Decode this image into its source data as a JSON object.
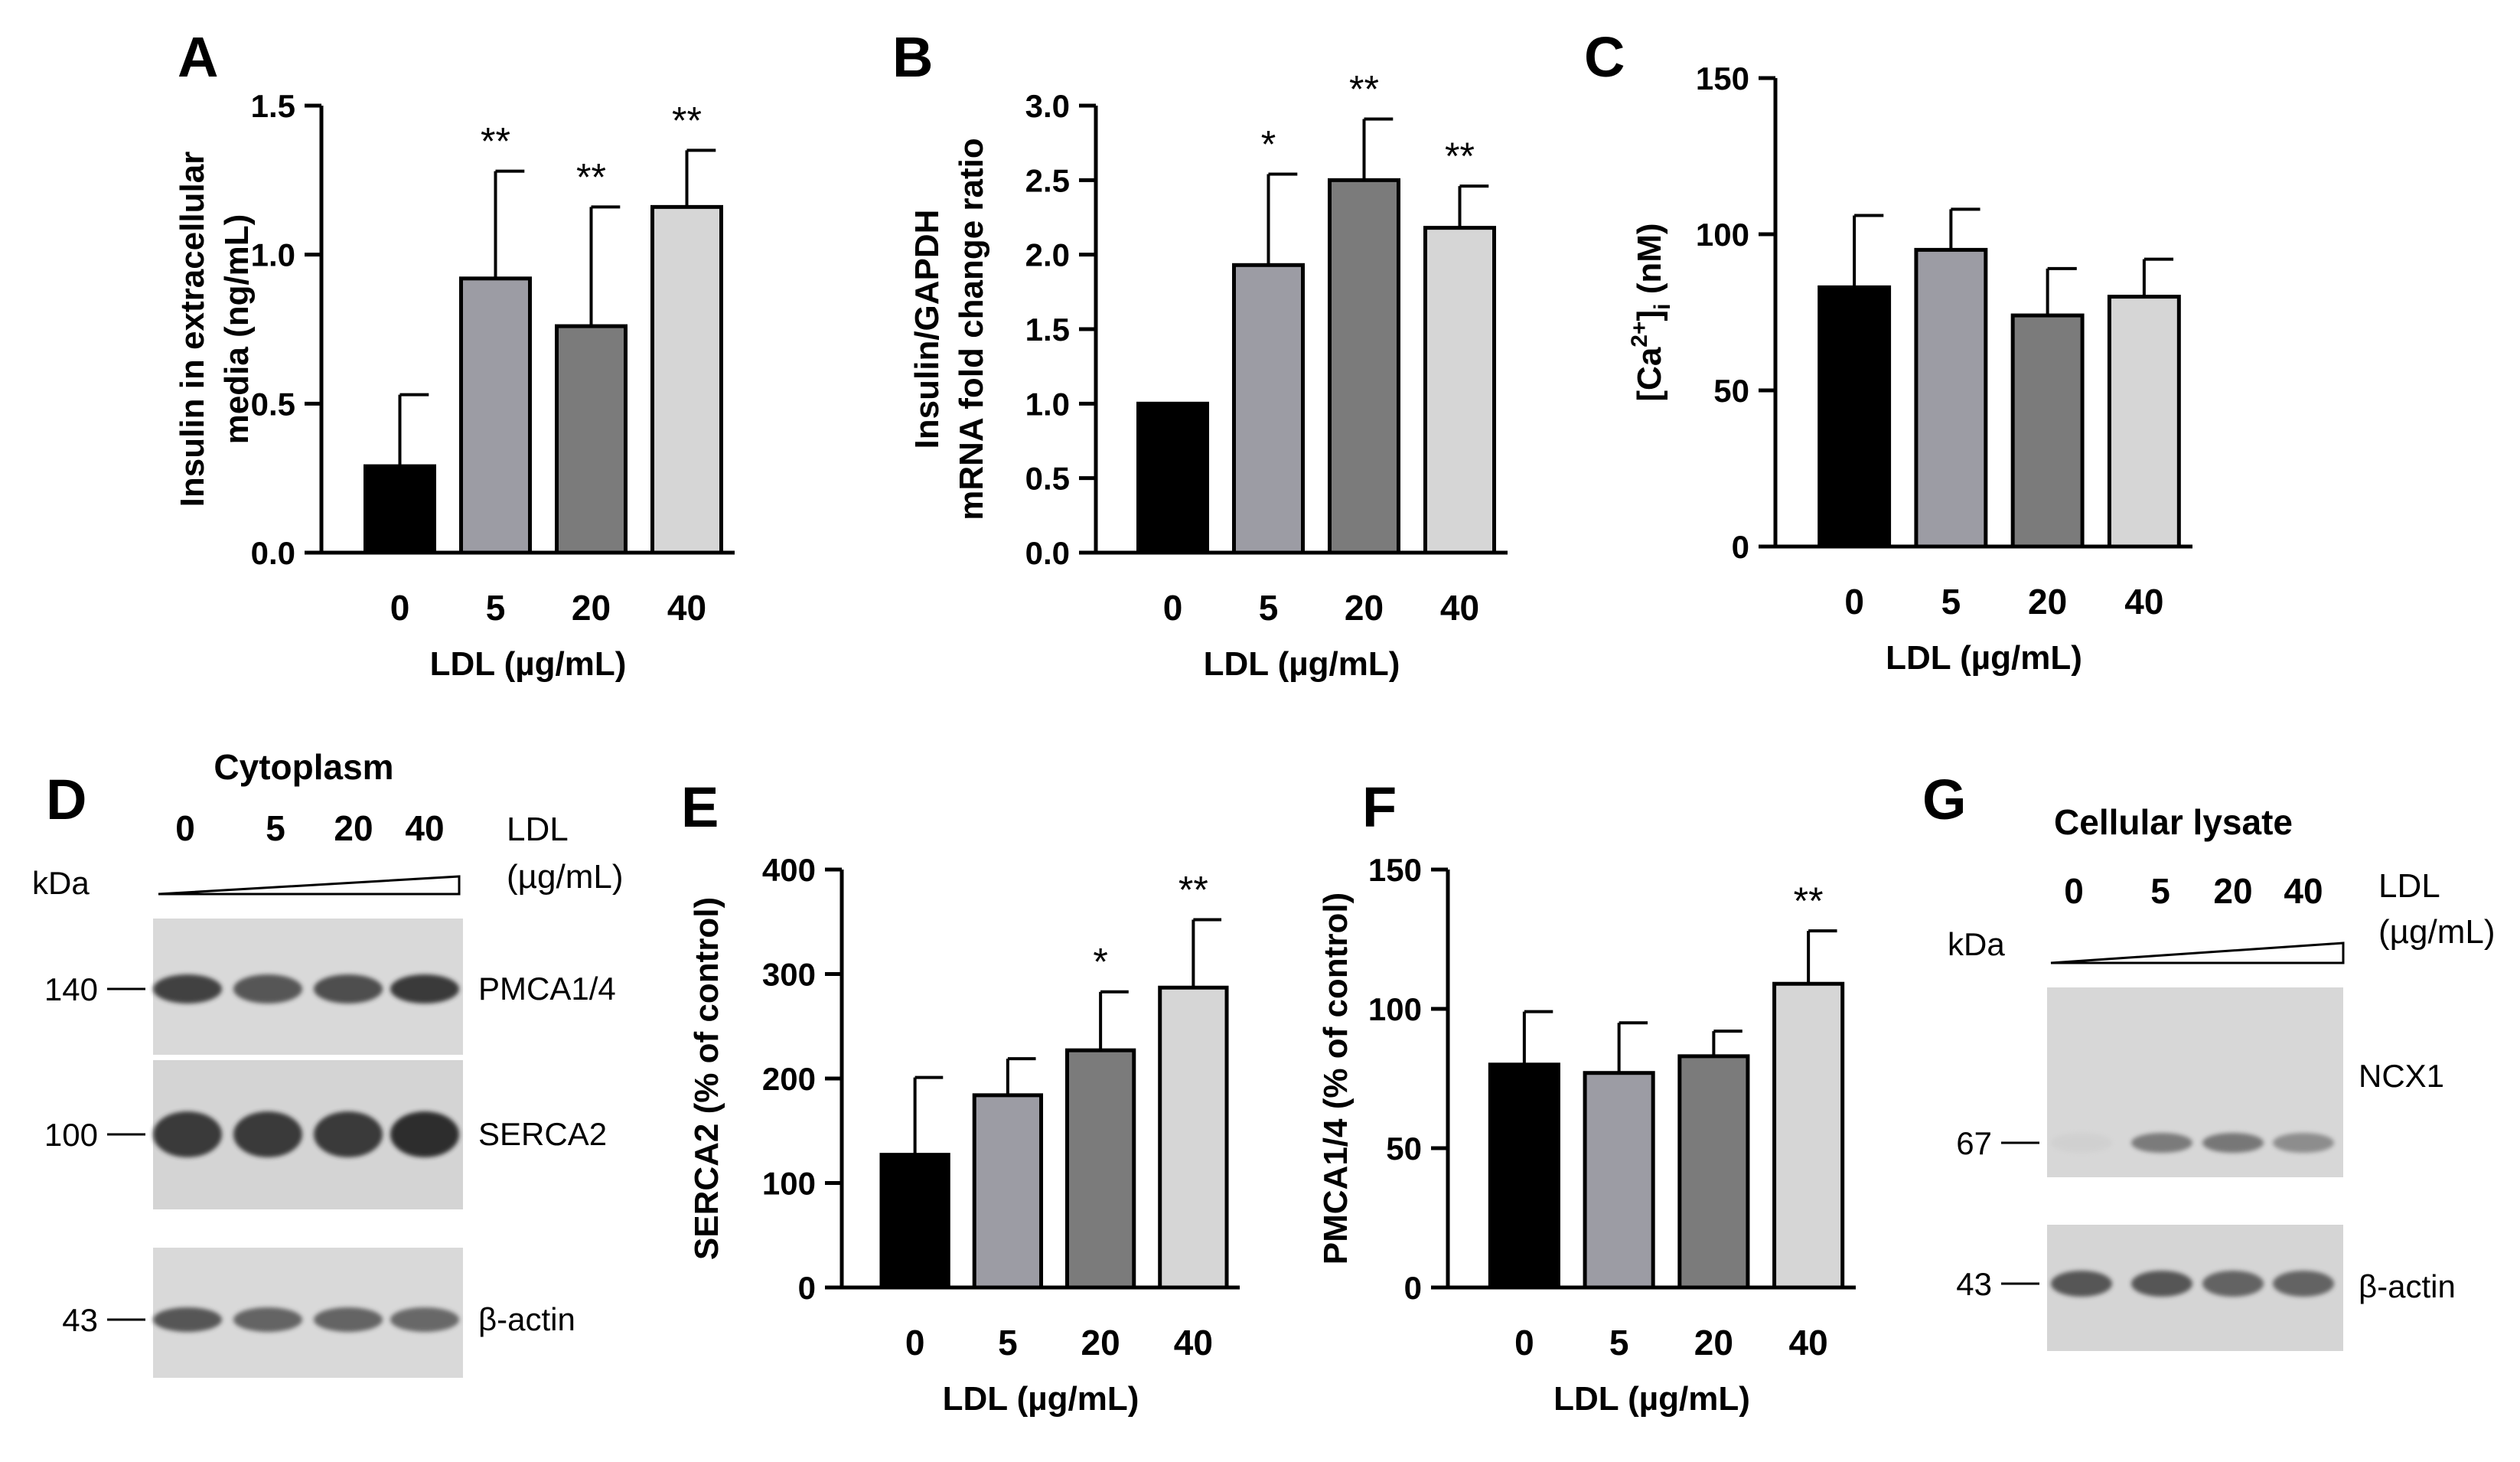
{
  "panel_letters": {
    "a": "A",
    "b": "B",
    "c": "C",
    "d": "D",
    "e": "E",
    "f": "F",
    "g": "G"
  },
  "colors": {
    "bar0": "#000000",
    "bar5": "#9c9ca4",
    "bar20": "#7b7b7b",
    "bar40": "#d6d6d6",
    "axis": "#000000"
  },
  "chart_data": [
    {
      "id": "A",
      "type": "bar",
      "categories": [
        "0",
        "5",
        "20",
        "40"
      ],
      "values": [
        0.29,
        0.92,
        0.76,
        1.16
      ],
      "errors": [
        0.24,
        0.36,
        0.4,
        0.19
      ],
      "significance": [
        "",
        "**",
        "**",
        "**"
      ],
      "ylim": [
        0,
        1.5
      ],
      "yticks": [
        "0.0",
        "0.5",
        "1.0",
        "1.5"
      ],
      "ylabel": [
        "Insulin in extracellular",
        "media  (ng/mL)"
      ],
      "xlabel": "LDL (µg/mL)"
    },
    {
      "id": "B",
      "type": "bar",
      "categories": [
        "0",
        "5",
        "20",
        "40"
      ],
      "values": [
        1.0,
        1.93,
        2.5,
        2.18
      ],
      "errors": [
        0.0,
        0.61,
        0.41,
        0.28
      ],
      "significance": [
        "",
        "*",
        "**",
        "**"
      ],
      "ylim": [
        0,
        3.0
      ],
      "yticks": [
        "0.0",
        "0.5",
        "1.0",
        "1.5",
        "2.0",
        "2.5",
        "3.0"
      ],
      "ylabel": [
        "Insulin/GAPDH",
        "mRNA fold change ratio"
      ],
      "xlabel": "LDL (µg/mL)"
    },
    {
      "id": "C",
      "type": "bar",
      "categories": [
        "0",
        "5",
        "20",
        "40"
      ],
      "values": [
        83,
        95,
        74,
        80
      ],
      "errors": [
        23,
        13,
        15,
        12
      ],
      "significance": [
        "",
        "",
        "",
        ""
      ],
      "ylim": [
        0,
        150
      ],
      "yticks": [
        "0",
        "50",
        "100",
        "150"
      ],
      "ylabel_main": "[Ca",
      "ylabel_sup": "2+",
      "ylabel_after": "]",
      "ylabel_sub": "i",
      "ylabel_end": " (nM)",
      "xlabel": "LDL (µg/mL)"
    },
    {
      "id": "E",
      "type": "bar",
      "categories": [
        "0",
        "5",
        "20",
        "40"
      ],
      "values": [
        127,
        184,
        227,
        287
      ],
      "errors": [
        74,
        35,
        56,
        65
      ],
      "significance": [
        "",
        "",
        "*",
        "**"
      ],
      "ylim": [
        0,
        400
      ],
      "yticks": [
        "0",
        "100",
        "200",
        "300",
        "400"
      ],
      "ylabel": [
        "SERCA2 (% of control)"
      ],
      "xlabel": "LDL (µg/mL)"
    },
    {
      "id": "F",
      "type": "bar",
      "categories": [
        "0",
        "5",
        "20",
        "40"
      ],
      "values": [
        80,
        77,
        83,
        109
      ],
      "errors": [
        19,
        18,
        9,
        19
      ],
      "significance": [
        "",
        "",
        "",
        "**"
      ],
      "ylim": [
        0,
        150
      ],
      "yticks": [
        "0",
        "50",
        "100",
        "150"
      ],
      "ylabel": [
        "PMCA1/4 (% of control)"
      ],
      "xlabel": "LDL (µg/mL)"
    }
  ],
  "blot_d": {
    "header": "Cytoplasm",
    "lanes": [
      "0",
      "5",
      "20",
      "40"
    ],
    "ldl_label": [
      "LDL",
      "(µg/mL)"
    ],
    "kda": "kDa",
    "rows": [
      {
        "kda": "140",
        "protein": "PMCA1/4",
        "intensity": [
          0.92,
          0.85,
          0.88,
          0.95
        ]
      },
      {
        "kda": "100",
        "protein": "SERCA2",
        "intensity": [
          0.95,
          0.95,
          0.95,
          0.98
        ]
      },
      {
        "kda": "43",
        "protein": "β-actin",
        "intensity": [
          0.85,
          0.8,
          0.8,
          0.78
        ]
      }
    ]
  },
  "blot_g": {
    "header": "Cellular lysate",
    "lanes": [
      "0",
      "5",
      "20",
      "40"
    ],
    "ldl_label": [
      "LDL",
      "(µg/mL)"
    ],
    "kda": "kDa",
    "rows": [
      {
        "kda": "67",
        "protein": "NCX1",
        "intensity": [
          0.1,
          0.7,
          0.72,
          0.62
        ]
      },
      {
        "kda": "43",
        "protein": "β-actin",
        "intensity": [
          0.85,
          0.85,
          0.8,
          0.8
        ]
      }
    ]
  }
}
